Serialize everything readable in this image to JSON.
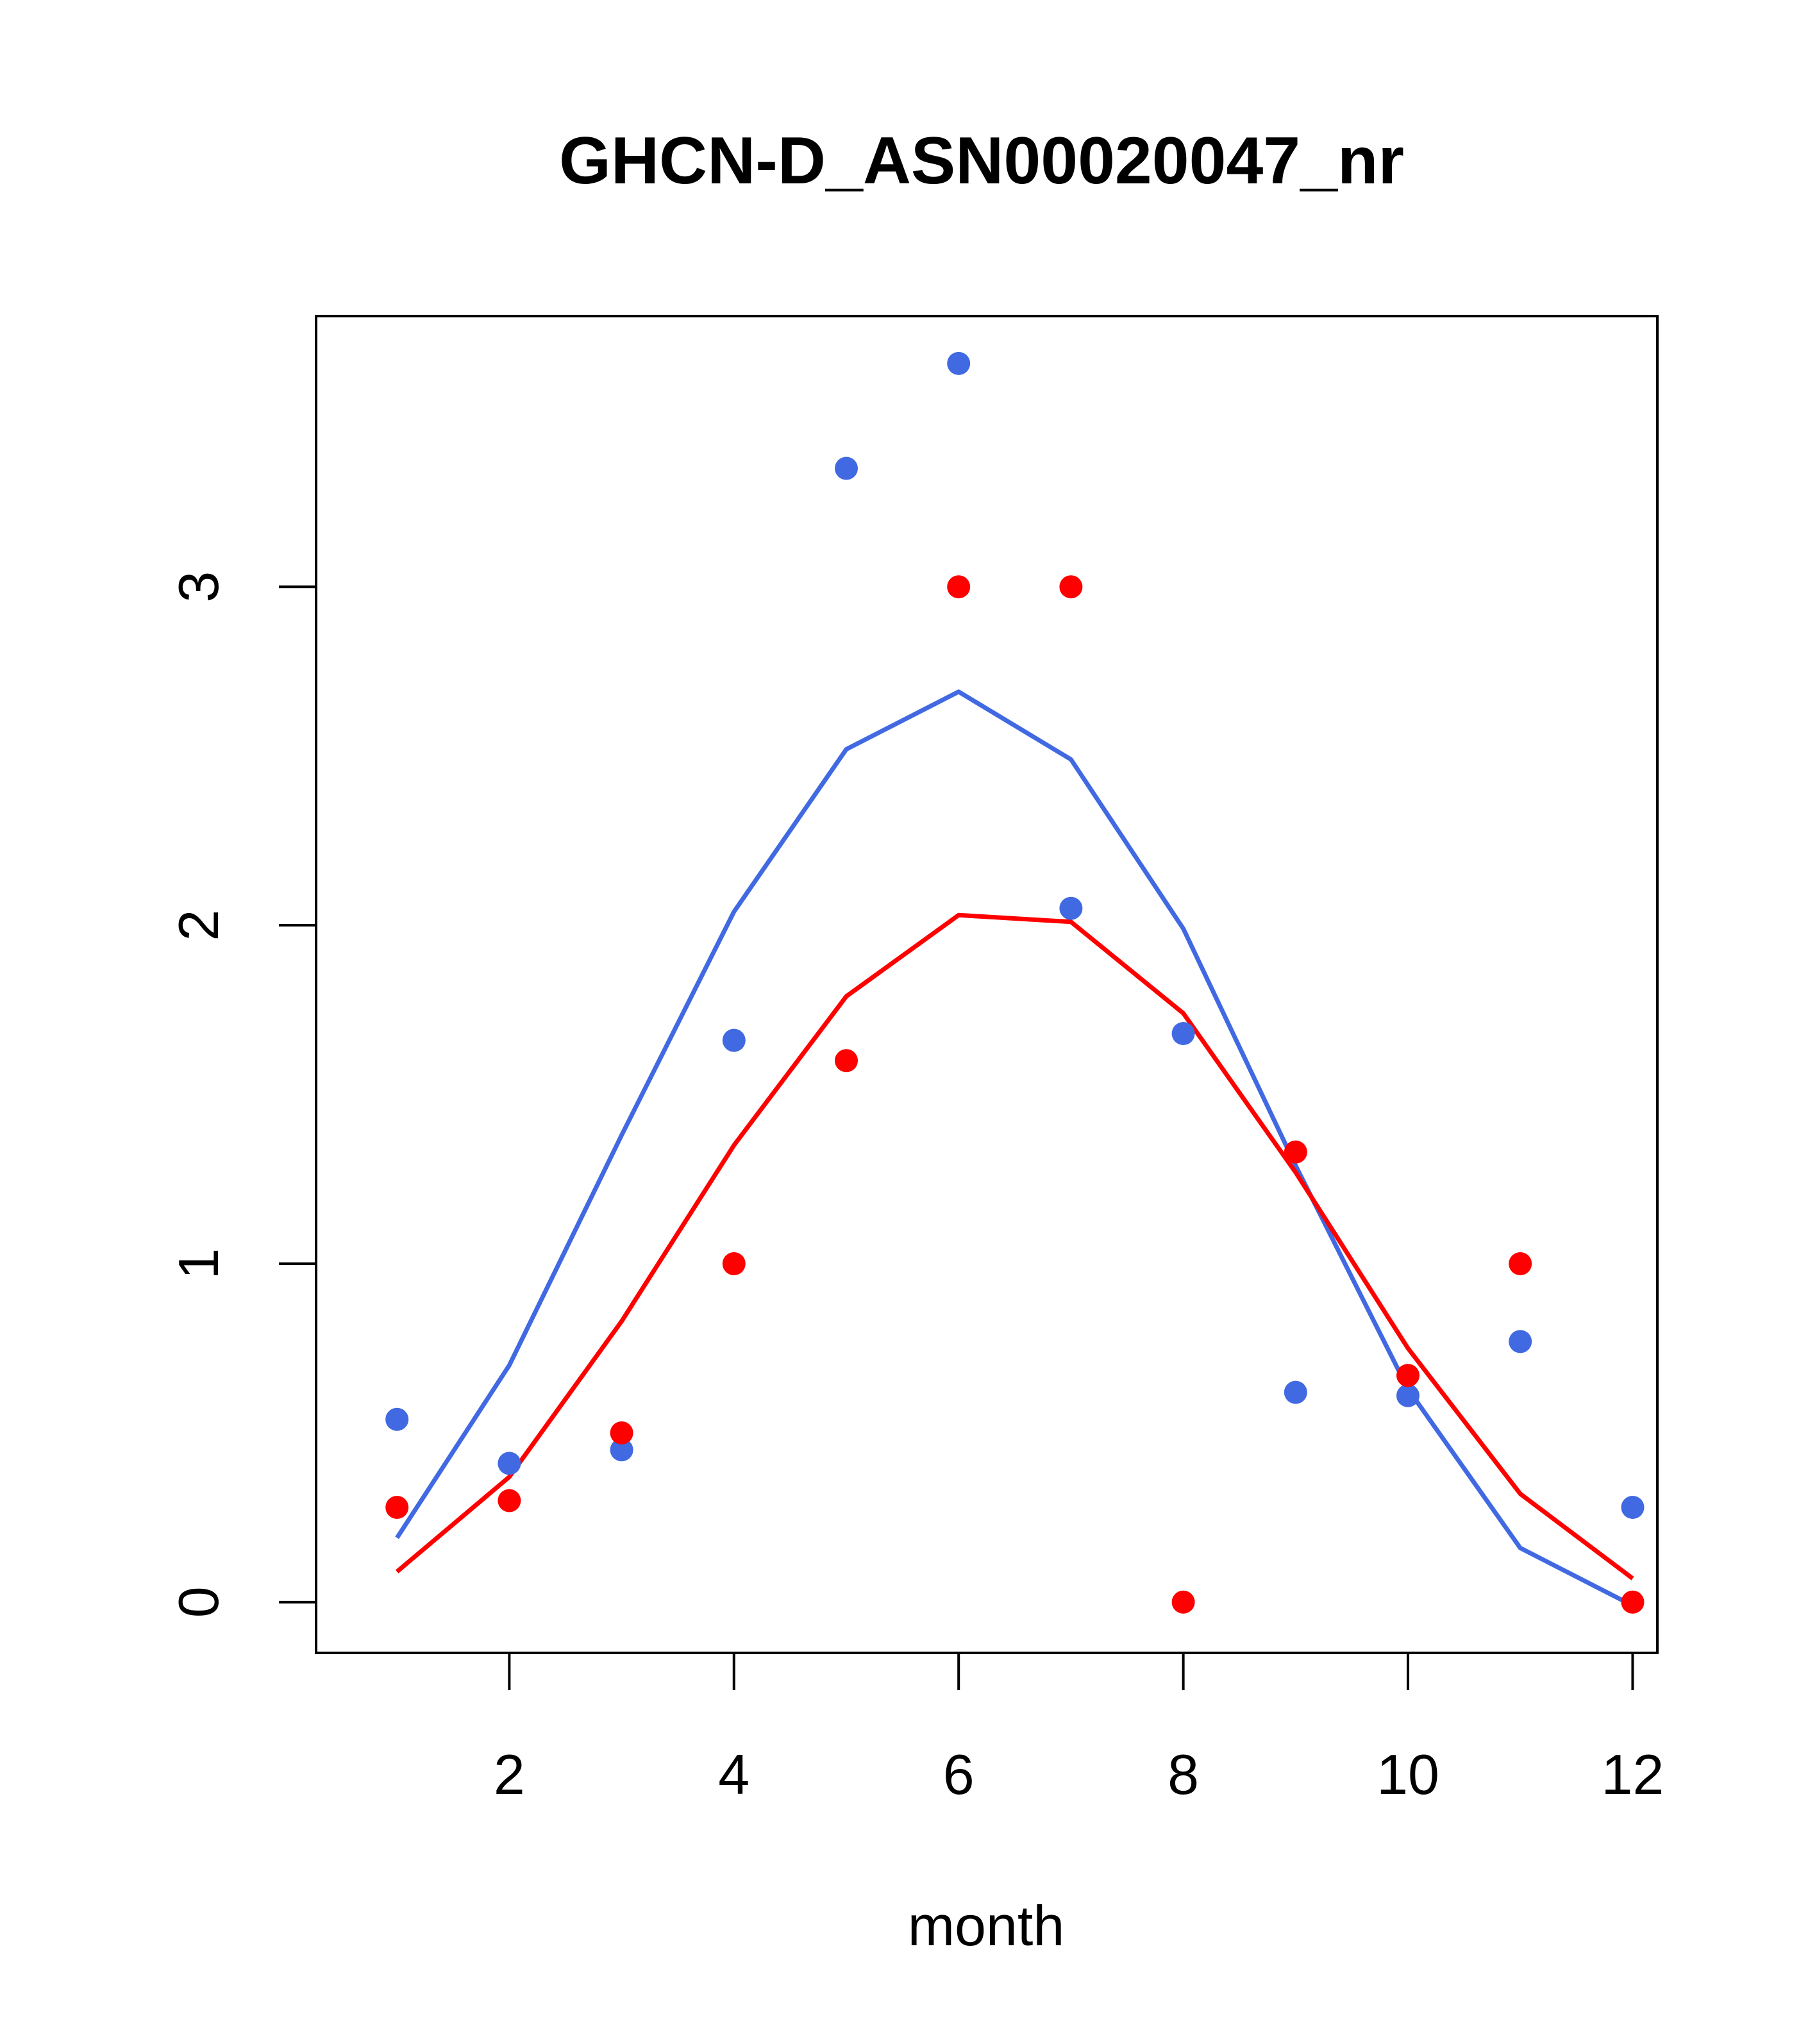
{
  "chart_data": {
    "type": "scatter",
    "title": "GHCN-D_ASN00020047_nr",
    "xlabel": "month",
    "ylabel": "",
    "xlim": [
      0.28,
      12.22
    ],
    "ylim": [
      -0.15,
      3.8
    ],
    "xticks": [
      2,
      4,
      6,
      8,
      10,
      12
    ],
    "yticks": [
      0,
      1,
      2,
      3
    ],
    "grid": false,
    "legend": "none",
    "series": [
      {
        "kind": "points",
        "color": "#4169E1",
        "x": [
          1,
          2,
          3,
          4,
          5,
          6,
          7,
          8,
          9,
          10,
          11,
          12
        ],
        "y": [
          0.54,
          0.41,
          0.45,
          1.66,
          3.35,
          3.66,
          2.05,
          1.68,
          0.62,
          0.61,
          0.77,
          0.28
        ]
      },
      {
        "kind": "points",
        "color": "#FF0000",
        "x": [
          1,
          2,
          3,
          4,
          5,
          6,
          7,
          8,
          9,
          10,
          11,
          12
        ],
        "y": [
          0.28,
          0.3,
          0.5,
          1.0,
          1.6,
          3.0,
          3.0,
          0.0,
          1.33,
          0.67,
          1.0,
          0.0
        ]
      },
      {
        "kind": "line",
        "color": "#4169E1",
        "x": [
          1,
          2,
          3,
          4,
          5,
          6,
          7,
          8,
          9,
          10,
          11,
          12
        ],
        "y": [
          0.19,
          0.7,
          1.38,
          2.04,
          2.52,
          2.69,
          2.49,
          1.99,
          1.29,
          0.63,
          0.16,
          -0.01
        ]
      },
      {
        "kind": "line",
        "color": "#FF0000",
        "x": [
          1,
          2,
          3,
          4,
          5,
          6,
          7,
          8,
          9,
          10,
          11,
          12
        ],
        "y": [
          0.09,
          0.37,
          0.83,
          1.35,
          1.79,
          2.03,
          2.01,
          1.74,
          1.27,
          0.75,
          0.32,
          0.07
        ]
      }
    ]
  }
}
